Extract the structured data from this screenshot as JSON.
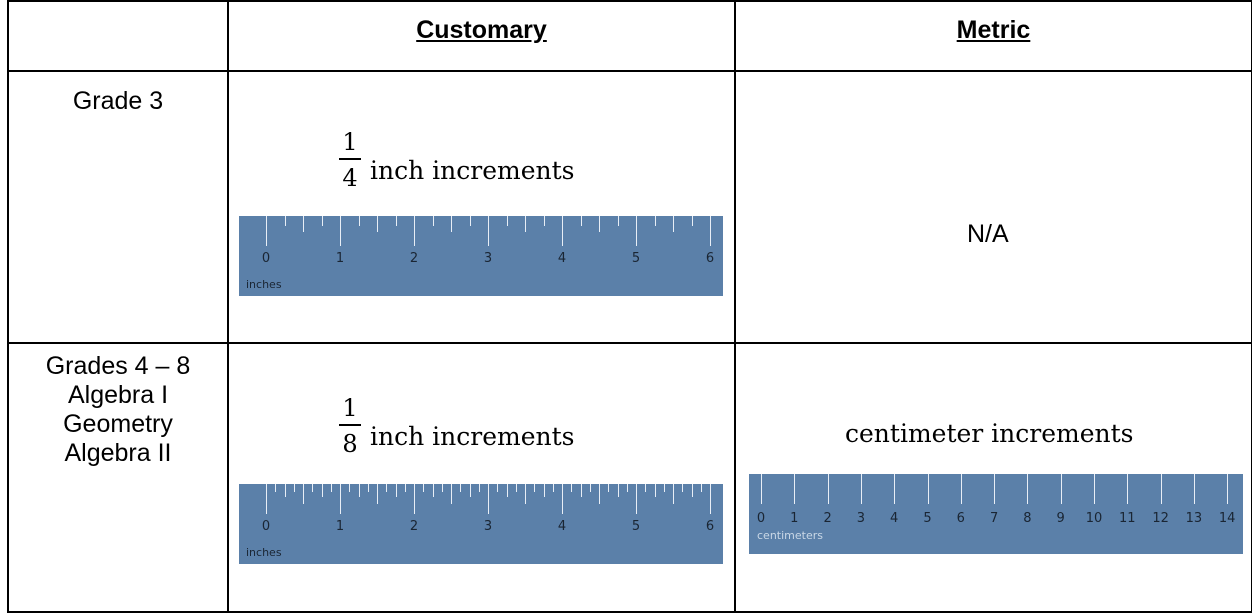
{
  "headers": {
    "customary": "Customary",
    "metric": "Metric"
  },
  "rows": [
    {
      "grade_lines": [
        "Grade 3"
      ],
      "customary": {
        "fraction_numerator": "1",
        "fraction_denominator": "4",
        "label": "inch increments",
        "ruler_numbers": [
          "0",
          "1",
          "2",
          "3",
          "4",
          "5",
          "6"
        ],
        "ruler_unit": "inches",
        "subdivisions_per_unit": 4
      },
      "metric": {
        "text": "N/A"
      }
    },
    {
      "grade_lines": [
        "Grades 4 – 8",
        "Algebra I",
        "Geometry",
        "Algebra II"
      ],
      "customary": {
        "fraction_numerator": "1",
        "fraction_denominator": "8",
        "label": "inch increments",
        "ruler_numbers": [
          "0",
          "1",
          "2",
          "3",
          "4",
          "5",
          "6"
        ],
        "ruler_unit": "inches",
        "subdivisions_per_unit": 8
      },
      "metric": {
        "label": "centimeter increments",
        "ruler_numbers": [
          "0",
          "1",
          "2",
          "3",
          "4",
          "5",
          "6",
          "7",
          "8",
          "9",
          "10",
          "11",
          "12",
          "13",
          "14"
        ],
        "ruler_unit": "centimeters"
      }
    }
  ]
}
